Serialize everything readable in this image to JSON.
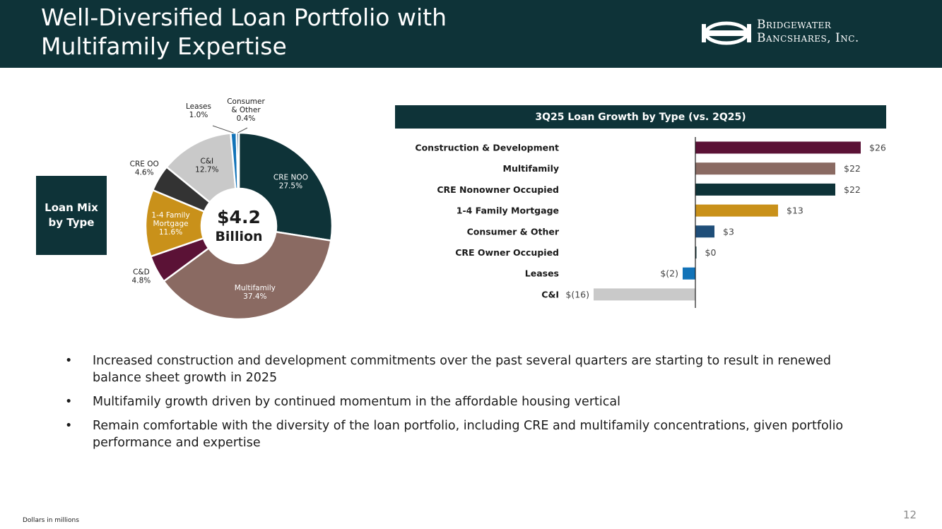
{
  "header": {
    "title_line1": "Well-Diversified Loan Portfolio with",
    "title_line2": "Multifamily Expertise",
    "logo_line1": "Bridgewater",
    "logo_line2": "Bancshares, Inc."
  },
  "loan_mix": {
    "label_line1": "Loan Mix",
    "label_line2": "by Type"
  },
  "bullets": [
    "Increased construction and development commitments over the past several quarters are starting to result in renewed balance sheet growth in 2025",
    "Multifamily growth driven by continued momentum in the affordable housing vertical",
    "Remain comfortable with the diversity of the loan portfolio, including CRE and multifamily concentrations, given portfolio performance and expertise"
  ],
  "footnote": "Dollars in millions",
  "page_number": "12",
  "chart_data": [
    {
      "type": "pie",
      "center_value": "$4.2",
      "center_label": "Billion",
      "slices": [
        {
          "label": [
            "CRE NOO"
          ],
          "value": 27.5,
          "value_label": "27.5%",
          "color": "#0e3338",
          "label_color": "#ffffff",
          "label_pos": "inside"
        },
        {
          "label": [
            "Multifamily"
          ],
          "value": 37.4,
          "value_label": "37.4%",
          "color": "#8a6a62",
          "label_color": "#ffffff",
          "label_pos": "inside"
        },
        {
          "label": [
            "C&D"
          ],
          "value": 4.8,
          "value_label": "4.8%",
          "color": "#5b1236",
          "label_color": "#1a1a1a",
          "label_pos": "outside"
        },
        {
          "label": [
            "1-4 Family",
            "Mortgage"
          ],
          "value": 11.6,
          "value_label": "11.6%",
          "color": "#c9911a",
          "label_color": "#ffffff",
          "label_pos": "inside"
        },
        {
          "label": [
            "CRE OO"
          ],
          "value": 4.6,
          "value_label": "4.6%",
          "color": "#333333",
          "label_color": "#1a1a1a",
          "label_pos": "outside"
        },
        {
          "label": [
            "C&I"
          ],
          "value": 12.7,
          "value_label": "12.7%",
          "color": "#c9c9c9",
          "label_color": "#1a1a1a",
          "label_pos": "inside"
        },
        {
          "label": [
            "Leases"
          ],
          "value": 1.0,
          "value_label": "1.0%",
          "color": "#1273b8",
          "label_color": "#1a1a1a",
          "label_pos": "callout"
        },
        {
          "label": [
            "Consumer",
            "& Other"
          ],
          "value": 0.4,
          "value_label": "0.4%",
          "color": "#1f4e79",
          "label_color": "#1a1a1a",
          "label_pos": "callout"
        }
      ]
    },
    {
      "type": "bar",
      "orientation": "horizontal",
      "title": "3Q25 Loan Growth by Type (vs. 2Q25)",
      "categories": [
        "Construction & Development",
        "Multifamily",
        "CRE Nonowner Occupied",
        "1-4 Family Mortgage",
        "Consumer & Other",
        "CRE Owner Occupied",
        "Leases",
        "C&I"
      ],
      "values": [
        26,
        22,
        22,
        13,
        3,
        0,
        -2,
        -16
      ],
      "value_labels": [
        "$26",
        "$22",
        "$22",
        "$13",
        "$3",
        "$0",
        "$(2)",
        "$(16)"
      ],
      "colors": [
        "#5b1236",
        "#8a6a62",
        "#0e3338",
        "#c9911a",
        "#1f4e79",
        "#0e3338",
        "#1273b8",
        "#c9c9c9"
      ],
      "xlim": [
        -16,
        26
      ]
    }
  ]
}
